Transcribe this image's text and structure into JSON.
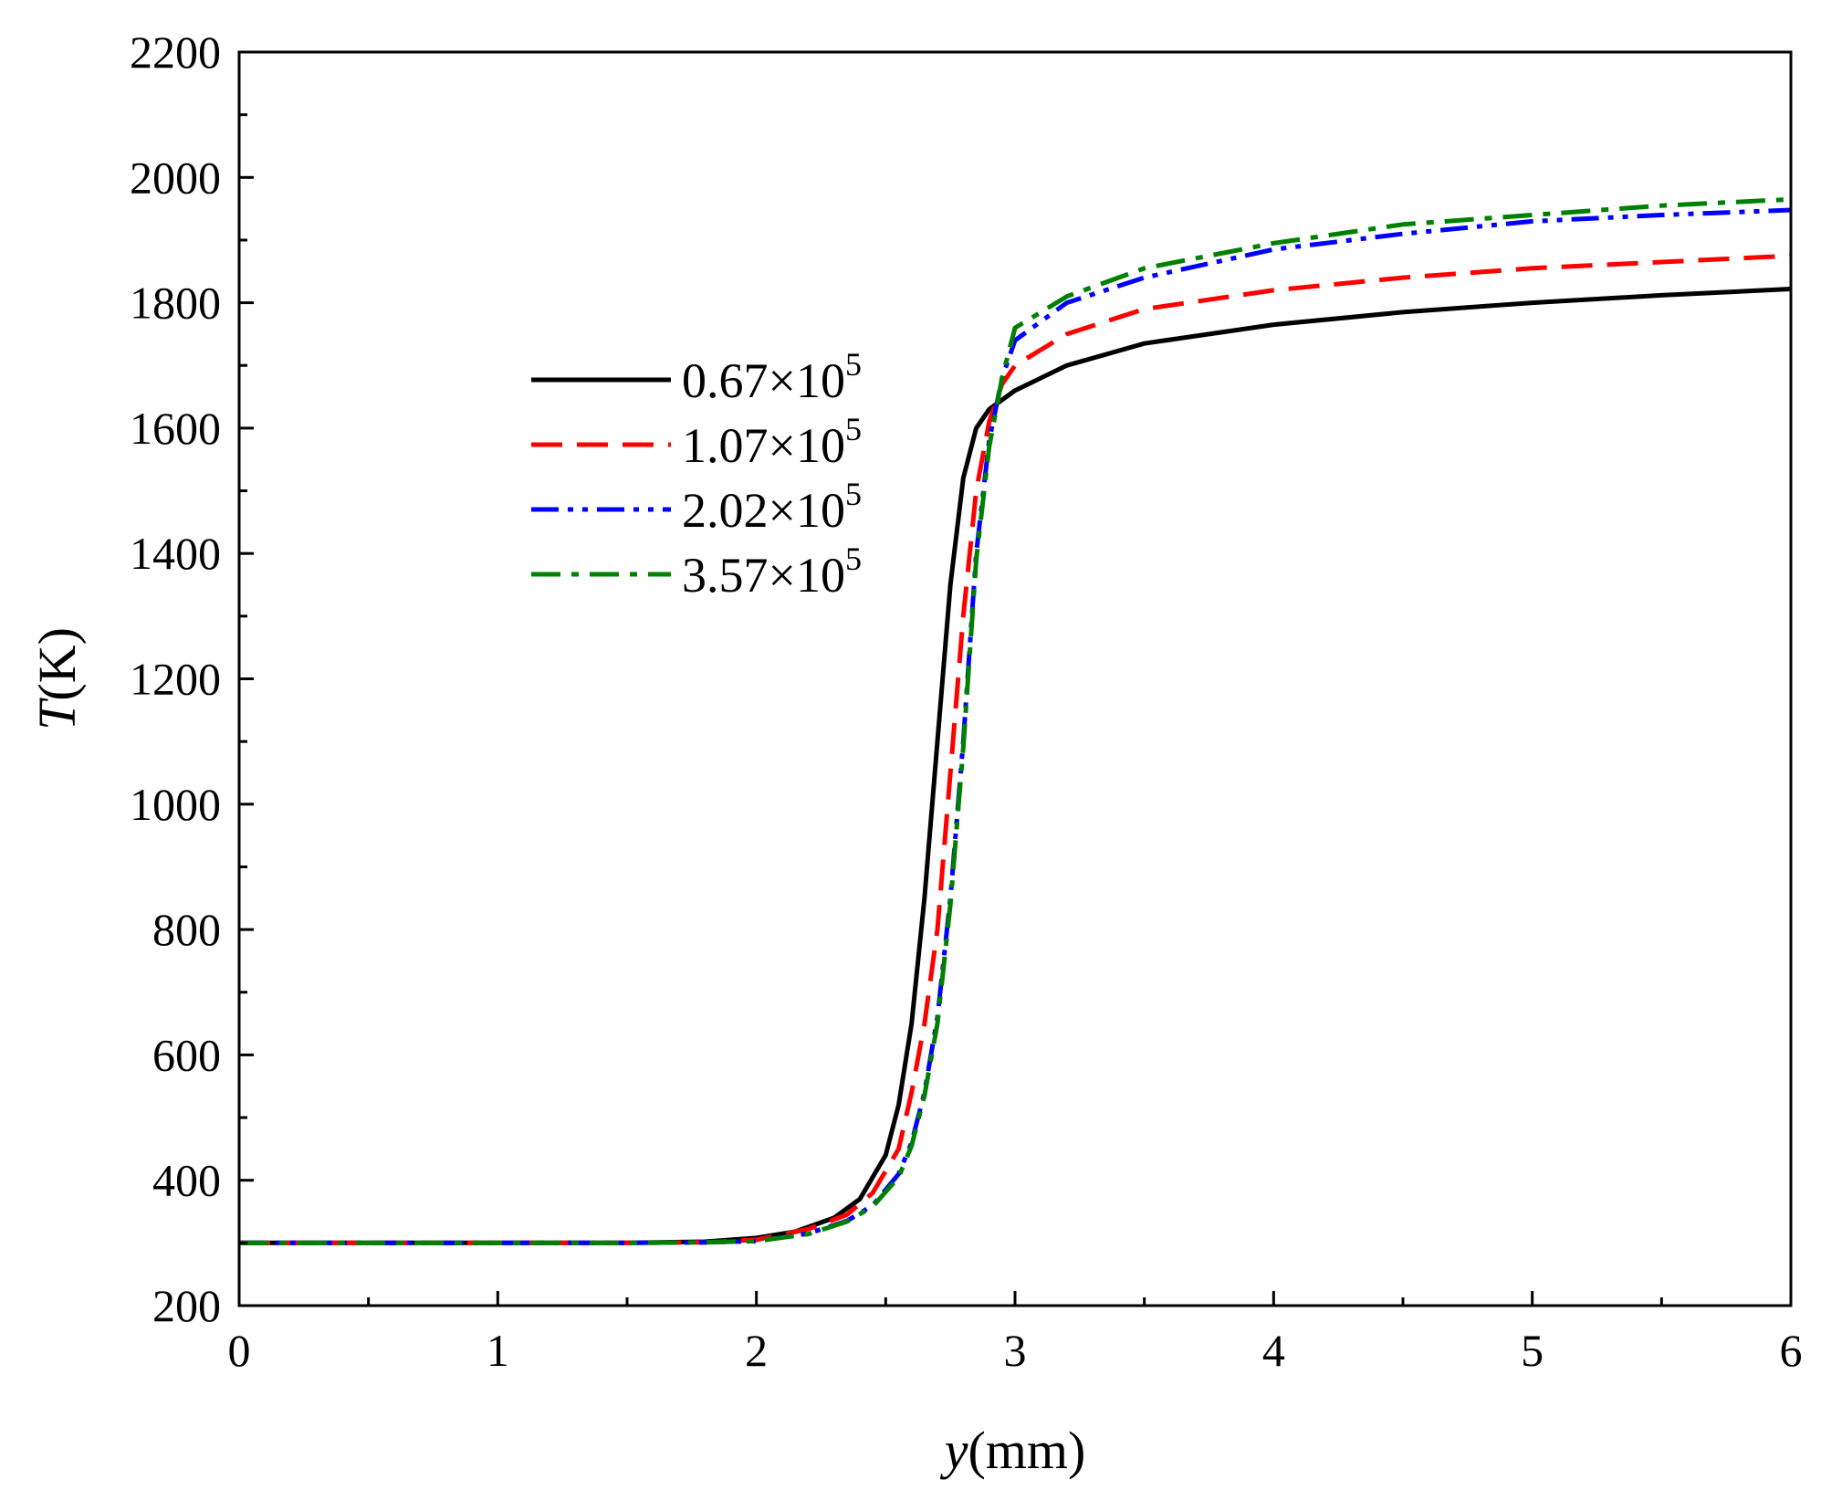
{
  "chart_data": {
    "type": "line",
    "xlabel": {
      "italic": "y",
      "rest": "(mm)"
    },
    "ylabel": {
      "italic": "T",
      "rest": "(K)"
    },
    "xlim": [
      0,
      6
    ],
    "ylim": [
      200,
      2200
    ],
    "xticks": [
      0,
      1,
      2,
      3,
      4,
      5,
      6
    ],
    "yticks": [
      200,
      400,
      600,
      800,
      1000,
      1200,
      1400,
      1600,
      1800,
      2000,
      2200
    ],
    "xtick_labels": [
      "0",
      "1",
      "2",
      "3",
      "4",
      "5",
      "6"
    ],
    "ytick_labels": [
      "200",
      "400",
      "600",
      "800",
      "1000",
      "1200",
      "1400",
      "1600",
      "1800",
      "2000",
      "2200"
    ],
    "legend_position": "center-left",
    "series": [
      {
        "name": "0.67×10",
        "exponent": "5",
        "color": "#000000",
        "dash": "solid",
        "points": [
          [
            0,
            300
          ],
          [
            1.5,
            300
          ],
          [
            1.8,
            302
          ],
          [
            2.0,
            308
          ],
          [
            2.15,
            318
          ],
          [
            2.3,
            340
          ],
          [
            2.4,
            370
          ],
          [
            2.5,
            440
          ],
          [
            2.55,
            520
          ],
          [
            2.6,
            650
          ],
          [
            2.65,
            850
          ],
          [
            2.7,
            1100
          ],
          [
            2.75,
            1350
          ],
          [
            2.8,
            1520
          ],
          [
            2.85,
            1600
          ],
          [
            2.9,
            1630
          ],
          [
            3.0,
            1660
          ],
          [
            3.2,
            1700
          ],
          [
            3.5,
            1735
          ],
          [
            4.0,
            1765
          ],
          [
            4.5,
            1785
          ],
          [
            5.0,
            1800
          ],
          [
            5.5,
            1812
          ],
          [
            6.0,
            1822
          ]
        ]
      },
      {
        "name": "1.07×10",
        "exponent": "5",
        "color": "#ff0000",
        "dash": "long-dash",
        "points": [
          [
            0,
            300
          ],
          [
            1.5,
            300
          ],
          [
            1.8,
            301
          ],
          [
            2.0,
            305
          ],
          [
            2.2,
            322
          ],
          [
            2.35,
            345
          ],
          [
            2.45,
            380
          ],
          [
            2.55,
            450
          ],
          [
            2.6,
            540
          ],
          [
            2.65,
            650
          ],
          [
            2.7,
            800
          ],
          [
            2.75,
            1050
          ],
          [
            2.8,
            1300
          ],
          [
            2.85,
            1500
          ],
          [
            2.9,
            1610
          ],
          [
            2.95,
            1670
          ],
          [
            3.0,
            1700
          ],
          [
            3.2,
            1750
          ],
          [
            3.5,
            1790
          ],
          [
            4.0,
            1820
          ],
          [
            4.5,
            1840
          ],
          [
            5.0,
            1855
          ],
          [
            5.5,
            1865
          ],
          [
            6.0,
            1875
          ]
        ]
      },
      {
        "name": "2.02×10",
        "exponent": "5",
        "color": "#0000ff",
        "dash": "dash-dot-dot",
        "points": [
          [
            0,
            300
          ],
          [
            1.5,
            300
          ],
          [
            1.8,
            301
          ],
          [
            2.0,
            303
          ],
          [
            2.2,
            315
          ],
          [
            2.35,
            335
          ],
          [
            2.45,
            360
          ],
          [
            2.55,
            410
          ],
          [
            2.6,
            460
          ],
          [
            2.65,
            540
          ],
          [
            2.7,
            660
          ],
          [
            2.75,
            850
          ],
          [
            2.8,
            1100
          ],
          [
            2.85,
            1400
          ],
          [
            2.9,
            1580
          ],
          [
            2.95,
            1680
          ],
          [
            3.0,
            1740
          ],
          [
            3.2,
            1800
          ],
          [
            3.5,
            1840
          ],
          [
            4.0,
            1885
          ],
          [
            4.5,
            1910
          ],
          [
            5.0,
            1930
          ],
          [
            5.5,
            1940
          ],
          [
            6.0,
            1948
          ]
        ]
      },
      {
        "name": "3.57×10",
        "exponent": "5",
        "color": "#008000",
        "dash": "dash-dot",
        "points": [
          [
            0,
            300
          ],
          [
            1.5,
            300
          ],
          [
            1.8,
            301
          ],
          [
            2.0,
            303
          ],
          [
            2.2,
            314
          ],
          [
            2.35,
            334
          ],
          [
            2.45,
            358
          ],
          [
            2.55,
            405
          ],
          [
            2.6,
            455
          ],
          [
            2.65,
            535
          ],
          [
            2.7,
            650
          ],
          [
            2.75,
            840
          ],
          [
            2.8,
            1090
          ],
          [
            2.85,
            1390
          ],
          [
            2.9,
            1570
          ],
          [
            2.95,
            1680
          ],
          [
            3.0,
            1760
          ],
          [
            3.2,
            1810
          ],
          [
            3.5,
            1855
          ],
          [
            4.0,
            1895
          ],
          [
            4.5,
            1925
          ],
          [
            5.0,
            1940
          ],
          [
            5.5,
            1955
          ],
          [
            6.0,
            1965
          ]
        ]
      }
    ]
  }
}
